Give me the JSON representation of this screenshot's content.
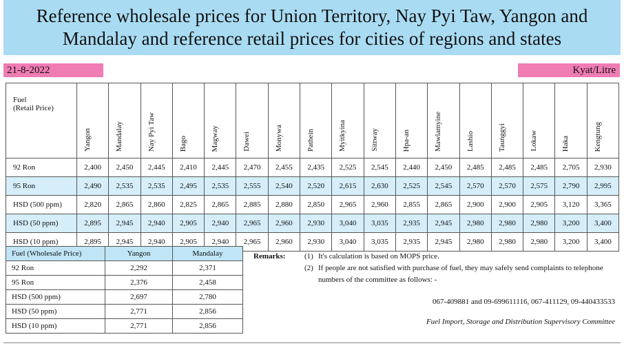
{
  "header": {
    "title": [
      "Reference wholesale prices for Union Territory, Nay Pyi Taw, Yangon and",
      "Mandalay and reference retail prices for cities of regions and states"
    ],
    "date": "21-8-2022",
    "unit": "Kyat/Litre"
  },
  "retail_table": {
    "header": [
      "Fuel\n(Retail Price)",
      "Yangon",
      "Mandalay",
      "Nay Pyi Taw",
      "Bago",
      "Magway",
      "Dawei",
      "Monywa",
      "Pathein",
      "Myitkyina",
      "Sittway",
      "Hpa-an",
      "Mawlamyine",
      "Lashio",
      "Taunggyi",
      "Lokaw",
      "Haka",
      "Kengtung"
    ],
    "rows": [
      [
        "92 Ron",
        "2,400",
        "2,450",
        "2,445",
        "2,410",
        "2,445",
        "2,470",
        "2,455",
        "2,435",
        "2,525",
        "2,545",
        "2,440",
        "2,450",
        "2,485",
        "2,485",
        "2,485",
        "2,705",
        "2,930"
      ],
      [
        "95 Ron",
        "2,490",
        "2,535",
        "2,535",
        "2,495",
        "2,535",
        "2,555",
        "2,540",
        "2,520",
        "2,615",
        "2,630",
        "2,525",
        "2,545",
        "2,570",
        "2,570",
        "2,575",
        "2,790",
        "2,995"
      ],
      [
        "HSD (500 ppm)",
        "2,820",
        "2,865",
        "2,860",
        "2,825",
        "2,865",
        "2,885",
        "2,880",
        "2,850",
        "2,965",
        "2,960",
        "2,855",
        "2,865",
        "2,900",
        "2,900",
        "2,905",
        "3,120",
        "3,365"
      ],
      [
        "HSD (50 ppm)",
        "2,895",
        "2,945",
        "2,940",
        "2,905",
        "2,940",
        "2,965",
        "2,960",
        "2,930",
        "3,040",
        "3,035",
        "2,935",
        "2,945",
        "2,980",
        "2,980",
        "2,980",
        "3,200",
        "3,400"
      ],
      [
        "HSD (10 ppm)",
        "2,895",
        "2,945",
        "2,940",
        "2,905",
        "2,940",
        "2,965",
        "2,960",
        "2,930",
        "3,040",
        "3,035",
        "2,935",
        "2,945",
        "2,980",
        "2,980",
        "2,980",
        "3,200",
        "3,400"
      ]
    ]
  },
  "wholesale_table": {
    "header": [
      "Fuel (Wholesale Price)",
      "Yangon",
      "Mandalay"
    ],
    "rows": [
      [
        "92 Ron",
        "2,292",
        "2,371"
      ],
      [
        "95 Ron",
        "2,376",
        "2,458"
      ],
      [
        "HSD (500 ppm)",
        "2,697",
        "2,780"
      ],
      [
        "HSD (50 ppm)",
        "2,771",
        "2,856"
      ],
      [
        "HSD (10 ppm)",
        "2,771",
        "2,856"
      ]
    ]
  },
  "remarks": {
    "label": "Remarks:",
    "items": [
      {
        "number": "(1)",
        "text": "It's calculation is based on MOPS price."
      },
      {
        "number": "(2)",
        "text": "If people are not satisfied with purchase of fuel, they may safely send complaints to telephone numbers of the committee as follows: -"
      }
    ],
    "contacts": "067-409881 and 09-699611116, 067-411129, 09-440433533",
    "committee": "Fuel Import, Storage and Distribution Supervisory Committee"
  }
}
